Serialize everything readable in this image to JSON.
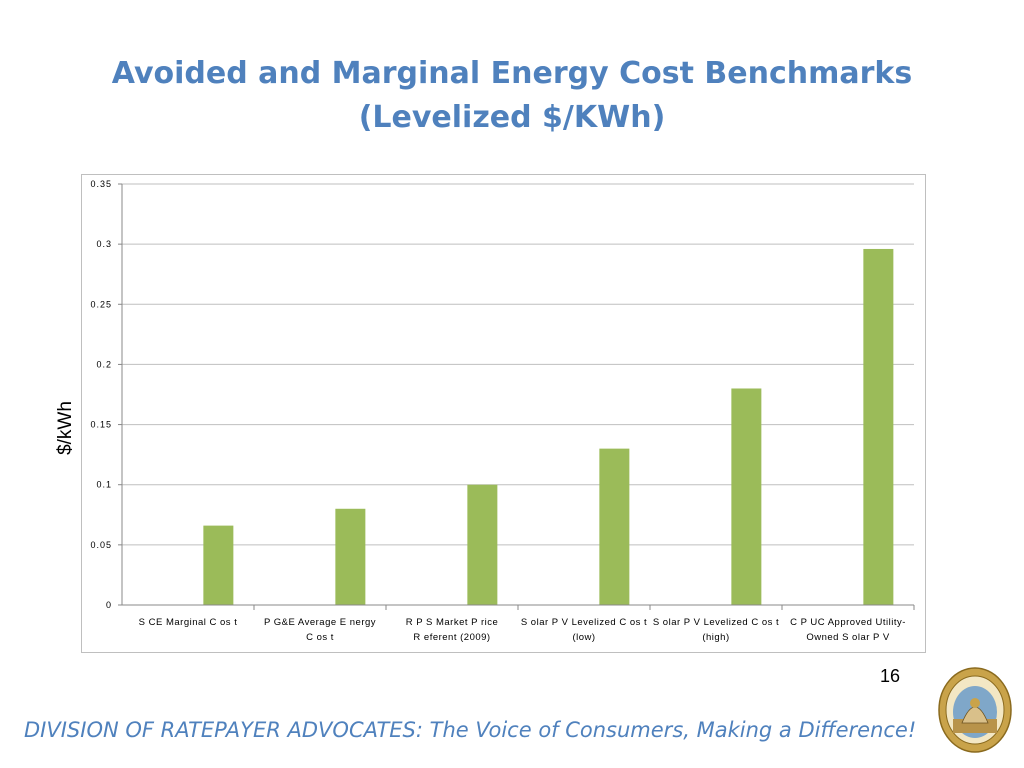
{
  "slide": {
    "title_line1": "Avoided and Marginal Energy Cost Benchmarks",
    "title_line2": "(Levelized $/KWh)",
    "page_number": "16",
    "footer": "DIVISION OF RATEPAYER ADVOCATES: The Voice of Consumers, Making a Difference!",
    "seal_text": "PUBLIC UTILITIES COMMISSION · STATE OF CALIFORNIA",
    "colors": {
      "title": "#4f81bd",
      "bar": "#9bbb59",
      "grid": "#bfbfbf"
    }
  },
  "chart_data": {
    "type": "bar",
    "title": "",
    "xlabel": "",
    "ylabel": "$/kWh",
    "ylim": [
      0,
      0.35
    ],
    "yticks": [
      "0",
      "0.05",
      "0.1",
      "0.15",
      "0.2",
      "0.25",
      "0.3",
      "0.35"
    ],
    "grid": true,
    "legend": "none",
    "categories": [
      [
        "S CE  Marginal C os t"
      ],
      [
        "P G&E  Average E nergy",
        "C os t"
      ],
      [
        "R P S  Market P rice",
        "R eferent (2009)"
      ],
      [
        "S olar P V  Levelized C os t",
        "(low)"
      ],
      [
        "S olar P V  Levelized C os t",
        "(high)"
      ],
      [
        "C P UC  Approved Utility-",
        "Owned S olar P V"
      ]
    ],
    "values": [
      0.066,
      0.08,
      0.1,
      0.13,
      0.18,
      0.296
    ]
  }
}
